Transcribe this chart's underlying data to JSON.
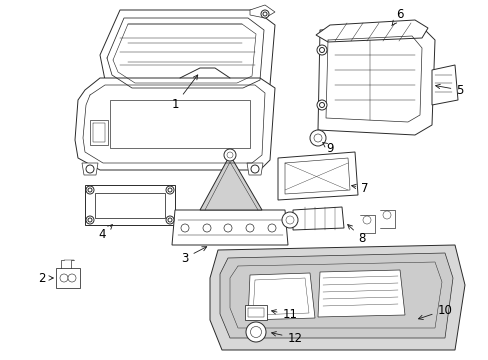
{
  "background_color": "#ffffff",
  "line_color": "#2a2a2a",
  "shade_color": "#d8d8d8",
  "label_fontsize": 8.5,
  "fig_width": 4.89,
  "fig_height": 3.6,
  "dpi": 100
}
